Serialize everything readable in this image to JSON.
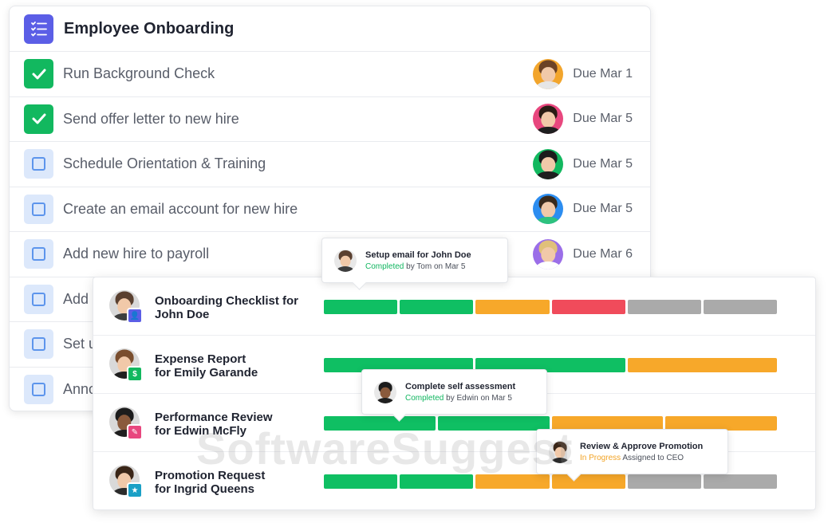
{
  "checklist": {
    "title": "Employee Onboarding",
    "icon": "checklist-icon",
    "tasks": [
      {
        "label": "Run Background Check",
        "done": true,
        "due": "Due Mar 1",
        "avatar_bg": "#f2a52c"
      },
      {
        "label": "Send offer letter to new hire",
        "done": true,
        "due": "Due Mar 5",
        "avatar_bg": "#e8477e"
      },
      {
        "label": "Schedule Orientation & Training",
        "done": false,
        "due": "Due Mar 5",
        "avatar_bg": "#12b85f"
      },
      {
        "label": "Create an email account for new hire",
        "done": false,
        "due": "Due Mar 5",
        "avatar_bg": "#2c8df0"
      },
      {
        "label": "Add new hire to payroll",
        "done": false,
        "due": "Due Mar 6",
        "avatar_bg": "#9b6ee8"
      },
      {
        "label": "Add",
        "done": false
      },
      {
        "label": "Set u",
        "done": false
      },
      {
        "label": "Anno",
        "done": false
      }
    ]
  },
  "progress": {
    "rows": [
      {
        "title_line1": "Onboarding Checklist for",
        "title_line2": "John Doe",
        "badge_color": "#5b5ee6",
        "segments": [
          "green",
          "green",
          "orange",
          "red",
          "grey",
          "grey"
        ]
      },
      {
        "title_line1": "Expense Report",
        "title_line2": "for Emily Garande",
        "badge_color": "#12b85f",
        "segments": [
          "green",
          "green",
          "orange"
        ]
      },
      {
        "title_line1": "Performance Review",
        "title_line2": "for Edwin McFly",
        "badge_color": "#e8477e",
        "segments": [
          "green",
          "green",
          "orange",
          "orange"
        ]
      },
      {
        "title_line1": "Promotion Request",
        "title_line2": "for Ingrid Queens",
        "badge_color": "#1aa0c6",
        "segments": [
          "green",
          "green",
          "orange",
          "orange",
          "grey",
          "grey"
        ]
      }
    ]
  },
  "tooltips": [
    {
      "title": "Setup email for John Doe",
      "status": "Completed",
      "rest": " by Tom on Mar 5"
    },
    {
      "title": "Complete self assessment",
      "status": "Completed",
      "rest": " by Edwin on Mar 5"
    },
    {
      "title": "Review & Approve Promotion",
      "status": "In Progress",
      "rest": "  Assigned to CEO"
    }
  ],
  "watermark": "SoftwareSuggest"
}
